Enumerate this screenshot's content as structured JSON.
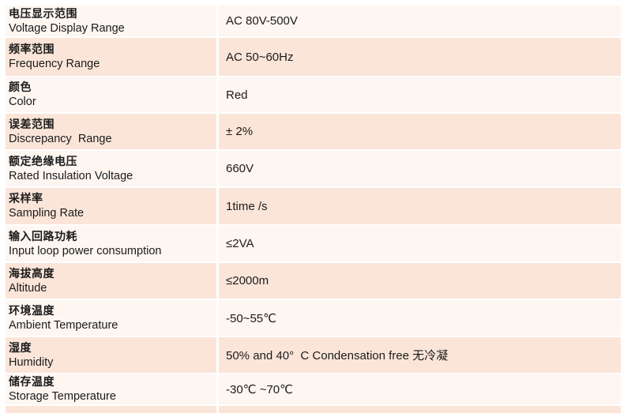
{
  "colors": {
    "row_pink": "#fbe5d9",
    "row_light": "#fdf6f1",
    "divider_white": "#ffffff",
    "text": "#1b1b1b"
  },
  "table": {
    "rows": [
      {
        "zh": "电压显示范围",
        "en": "Voltage Display Range",
        "value": "AC 80V-500V"
      },
      {
        "zh": "频率范围",
        "en": "Frequency Range",
        "value": "AC 50~60Hz"
      },
      {
        "zh": "颜色",
        "en": "Color",
        "value": "Red"
      },
      {
        "zh": "误差范围",
        "en": "Discrepancy  Range",
        "value": "± 2%"
      },
      {
        "zh": "额定绝缘电压",
        "en": "Rated Insulation Voltage",
        "value": "660V"
      },
      {
        "zh": "采样率",
        "en": "Sampling Rate",
        "value": "1time /s"
      },
      {
        "zh": "输入回路功耗",
        "en": "Input loop power consumption",
        "value": "≤2VA"
      },
      {
        "zh": "海拔高度",
        "en": "Altitude",
        "value": "≤2000m"
      },
      {
        "zh": "环境温度",
        "en": "Ambient Temperature",
        "value": "-50~55℃"
      },
      {
        "zh": "湿度",
        "en": "Humidity",
        "value": "50% and 40°  C Condensation free 无冷凝"
      },
      {
        "zh": "储存温度",
        "en": "Storage Temperature",
        "value": "-30℃ ~70℃"
      }
    ]
  }
}
